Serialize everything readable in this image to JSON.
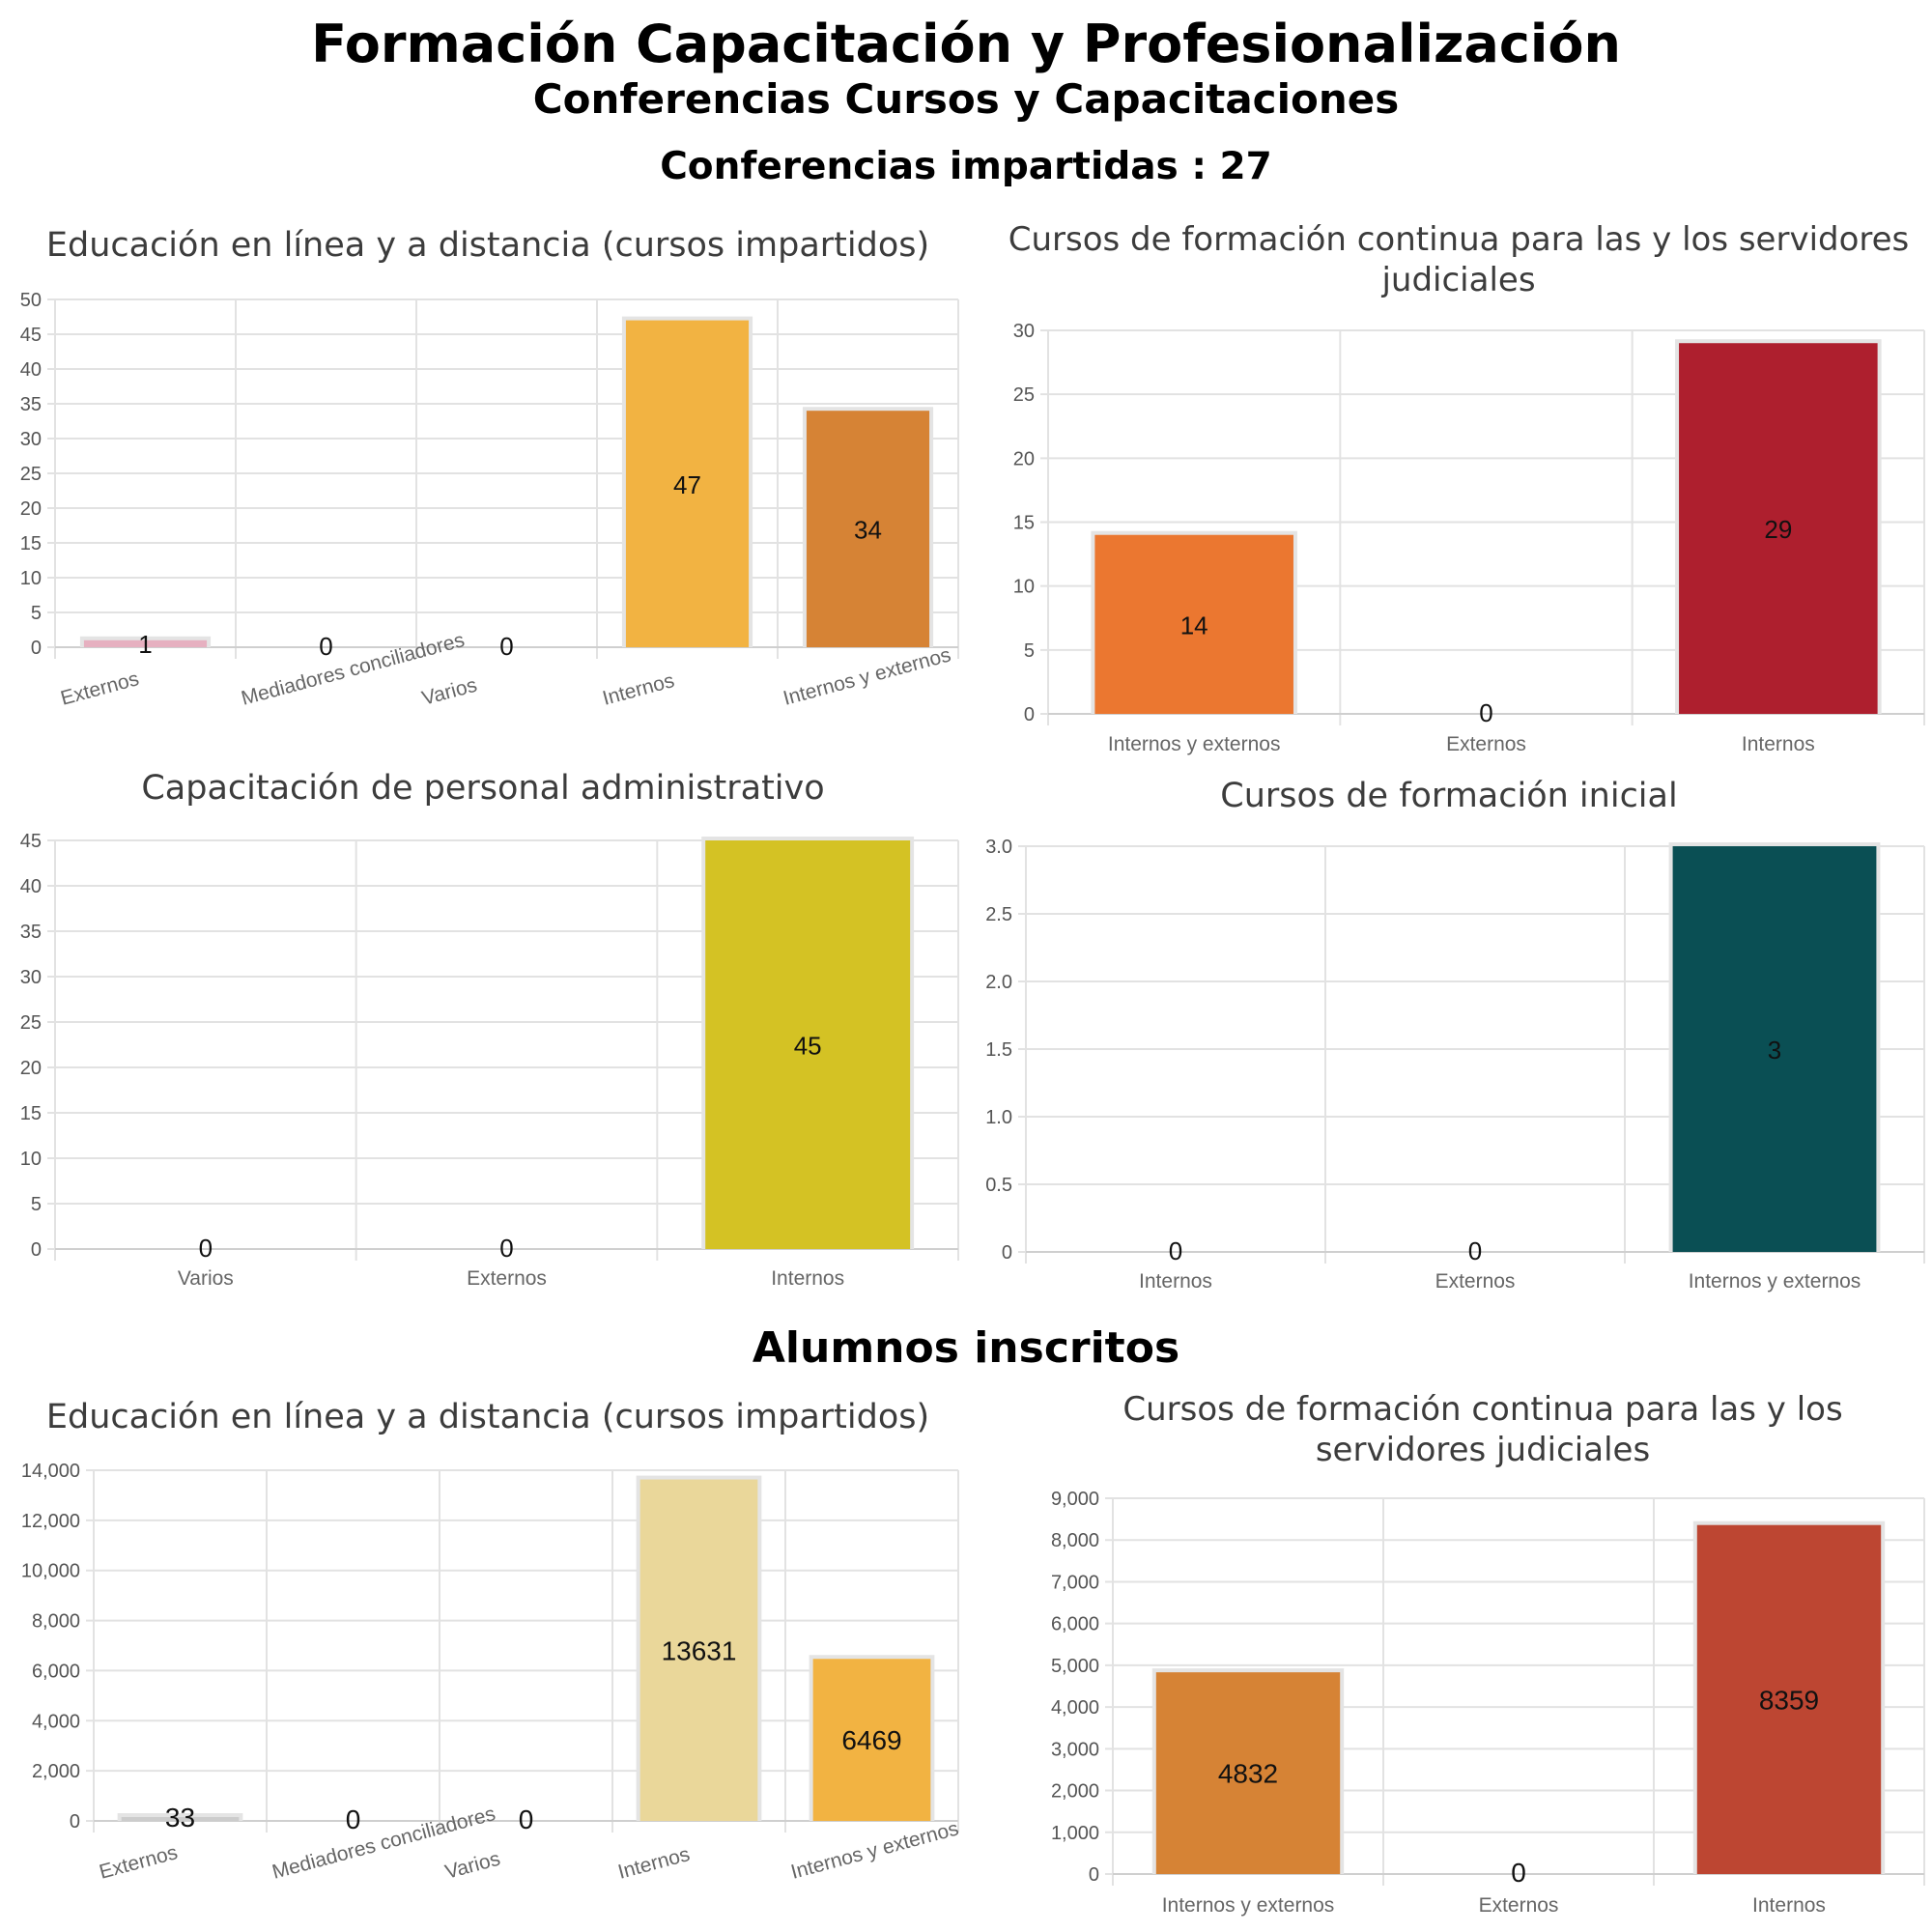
{
  "header": {
    "title": "Formación Capacitación y Profesionalización",
    "subtitle": "Conferencias Cursos y Capacitaciones",
    "conferences_line": "Conferencias impartidas : 27",
    "section_students": "Alumnos inscritos"
  },
  "chart_data": [
    {
      "type": "bar",
      "title": "Educación en línea y a distancia (cursos impartidos)",
      "categories": [
        "Externos",
        "Mediadores conciliadores",
        "Varios",
        "Internos",
        "Internos y externos"
      ],
      "values": [
        1,
        0,
        0,
        47,
        34
      ],
      "colors": [
        "#e6b0c0",
        "#cccccc",
        "#cccccc",
        "#f2b342",
        "#d68335"
      ],
      "ylim": [
        0,
        50
      ],
      "yticks": [
        0,
        5,
        10,
        15,
        20,
        25,
        30,
        35,
        40,
        45,
        50
      ],
      "ytick_labels": [
        "0",
        "5",
        "10",
        "15",
        "20",
        "25",
        "30",
        "35",
        "40",
        "45",
        "50"
      ],
      "xlabels_rotated": true,
      "grid": true
    },
    {
      "type": "bar",
      "title": "Cursos de formación continua para las y los servidores judiciales",
      "categories": [
        "Internos y externos",
        "Externos",
        "Internos"
      ],
      "values": [
        14,
        0,
        29
      ],
      "colors": [
        "#eb7730",
        "#cccccc",
        "#ae1f2e"
      ],
      "ylim": [
        0,
        30
      ],
      "yticks": [
        0,
        5,
        10,
        15,
        20,
        25,
        30
      ],
      "ytick_labels": [
        "0",
        "5",
        "10",
        "15",
        "20",
        "25",
        "30"
      ],
      "xlabels_rotated": false,
      "grid": true
    },
    {
      "type": "bar",
      "title": "Capacitación de personal administrativo",
      "categories": [
        "Varios",
        "Externos",
        "Internos"
      ],
      "values": [
        0,
        0,
        45
      ],
      "colors": [
        "#cccccc",
        "#cccccc",
        "#d4c224"
      ],
      "ylim": [
        0,
        45
      ],
      "yticks": [
        0,
        5,
        10,
        15,
        20,
        25,
        30,
        35,
        40,
        45
      ],
      "ytick_labels": [
        "0",
        "5",
        "10",
        "15",
        "20",
        "25",
        "30",
        "35",
        "40",
        "45"
      ],
      "xlabels_rotated": false,
      "grid": true
    },
    {
      "type": "bar",
      "title": "Cursos de formación inicial",
      "categories": [
        "Internos",
        "Externos",
        "Internos y externos"
      ],
      "values": [
        0,
        0,
        3
      ],
      "colors": [
        "#cccccc",
        "#cccccc",
        "#0a4f54"
      ],
      "ylim": [
        0,
        3
      ],
      "yticks": [
        0,
        0.5,
        1,
        1.5,
        2,
        2.5,
        3
      ],
      "ytick_labels": [
        "0",
        "0.5",
        "1.0",
        "1.5",
        "2.0",
        "2.5",
        "3.0"
      ],
      "xlabels_rotated": false,
      "grid": true
    },
    {
      "type": "bar",
      "title": "Educación en línea y a distancia (cursos impartidos)",
      "categories": [
        "Externos",
        "Mediadores conciliadores",
        "Varios",
        "Internos",
        "Internos y externos"
      ],
      "values": [
        33,
        0,
        0,
        13631,
        6469
      ],
      "colors": [
        "#cccccc",
        "#cccccc",
        "#cccccc",
        "#ead79a",
        "#f2b342"
      ],
      "ylim": [
        0,
        14000
      ],
      "yticks": [
        0,
        2000,
        4000,
        6000,
        8000,
        10000,
        12000,
        14000
      ],
      "ytick_labels": [
        "0",
        "2,000",
        "4,000",
        "6,000",
        "8,000",
        "10,000",
        "12,000",
        "14,000"
      ],
      "xlabels_rotated": true,
      "grid": true
    },
    {
      "type": "bar",
      "title": "Cursos de formación continua para las y los servidores judiciales",
      "categories": [
        "Internos y externos",
        "Externos",
        "Internos"
      ],
      "values": [
        4832,
        0,
        8359
      ],
      "colors": [
        "#d68335",
        "#cccccc",
        "#bd4632"
      ],
      "ylim": [
        0,
        9000
      ],
      "yticks": [
        0,
        1000,
        2000,
        3000,
        4000,
        5000,
        6000,
        7000,
        8000,
        9000
      ],
      "ytick_labels": [
        "0",
        "1,000",
        "2,000",
        "3,000",
        "4,000",
        "5,000",
        "6,000",
        "7,000",
        "8,000",
        "9,000"
      ],
      "xlabels_rotated": false,
      "grid": true
    }
  ]
}
